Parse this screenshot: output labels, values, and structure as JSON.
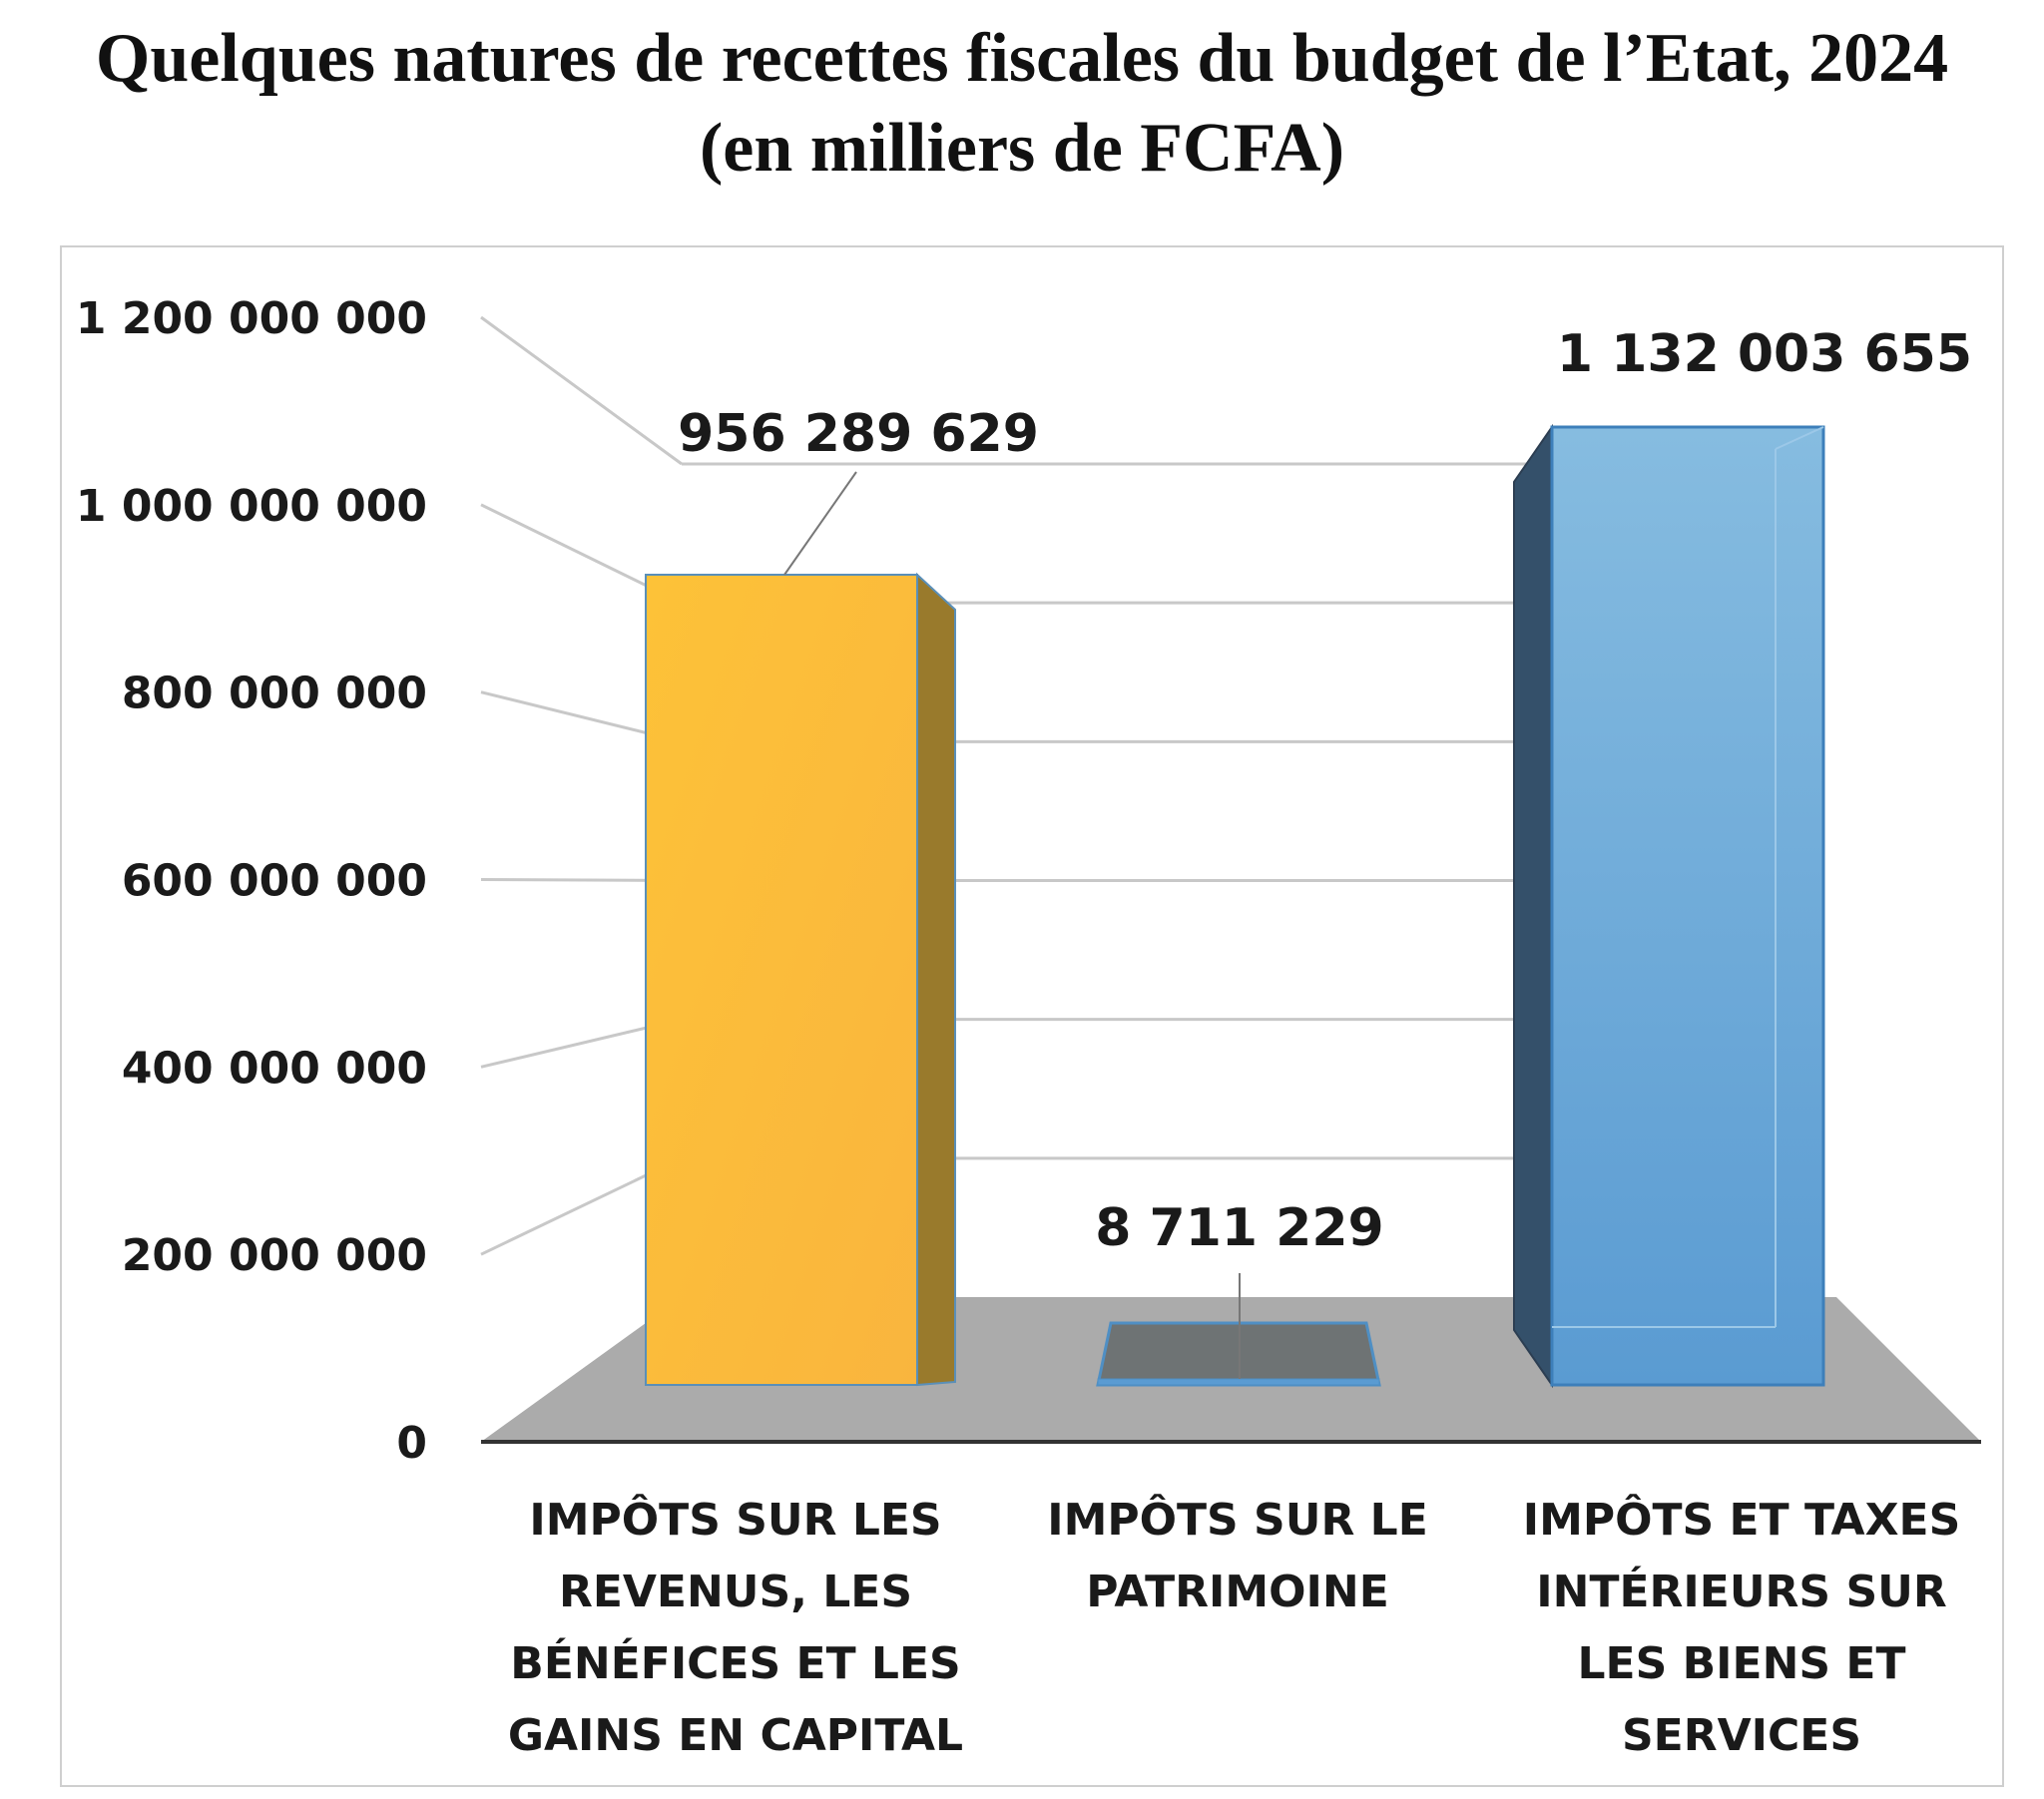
{
  "chart_data": {
    "type": "bar",
    "title": "Quelques natures de recettes fiscales du budget de l’Etat, 2024",
    "subtitle": "(en milliers de FCFA)",
    "categories": [
      [
        "IMPÔTS SUR LES",
        "REVENUS, LES",
        "BÉNÉFICES ET LES",
        "GAINS EN CAPITAL"
      ],
      [
        "IMPÔTS SUR LE",
        "PATRIMOINE"
      ],
      [
        "IMPÔTS ET TAXES",
        "INTÉRIEURS SUR",
        "LES BIENS ET",
        "SERVICES"
      ]
    ],
    "values": [
      956289629,
      8711229,
      1132003655
    ],
    "value_labels": [
      "956 289 629",
      "8 711 229",
      "1 132 003 655"
    ],
    "ylim": [
      0,
      1200000000
    ],
    "yticks": [
      0,
      200000000,
      400000000,
      600000000,
      800000000,
      1000000000,
      1200000000
    ],
    "ytick_labels": [
      "0",
      "200 000 000",
      "400 000 000",
      "600 000 000",
      "800 000 000",
      "1 000 000 000",
      "1 200 000 000"
    ],
    "colors": [
      "#FBBC3B",
      "#6E7374",
      "#6FA8D6"
    ],
    "grid": true,
    "style": "3d-column"
  }
}
